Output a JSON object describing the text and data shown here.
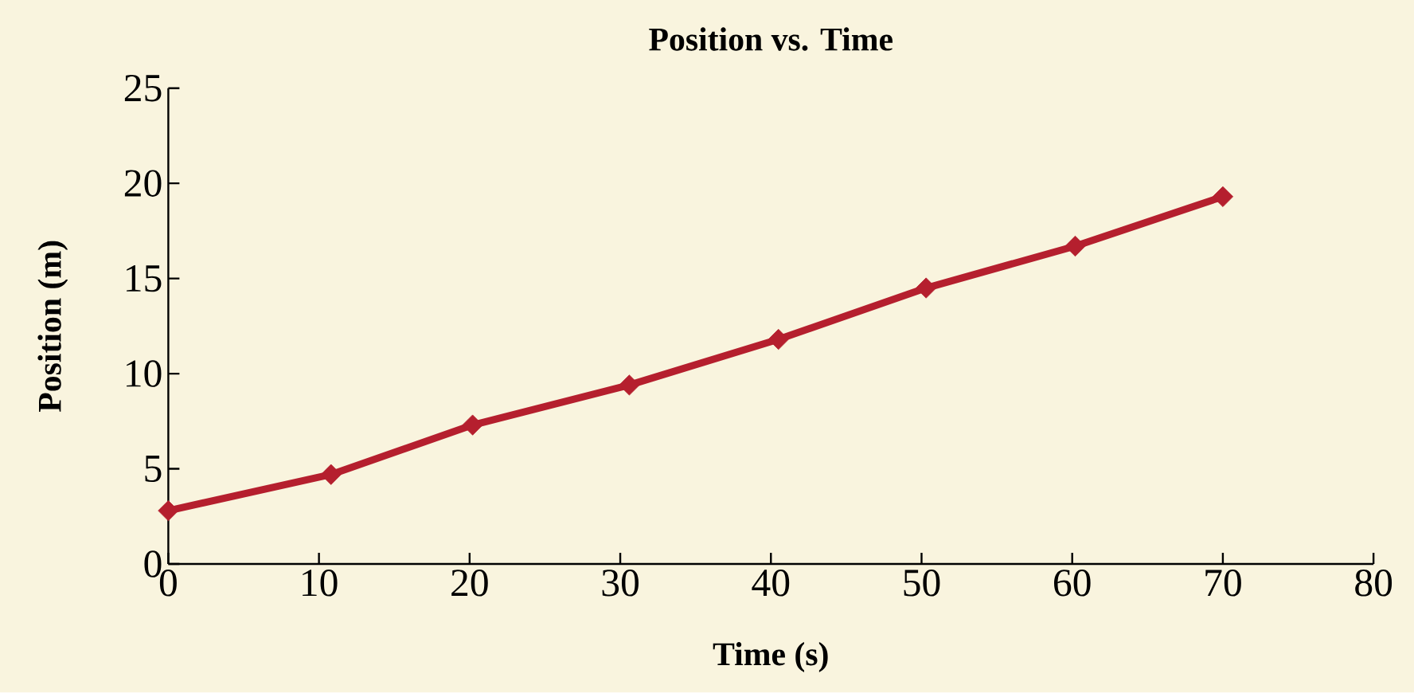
{
  "chart_data": {
    "type": "line",
    "title": "Position vs. Time",
    "xlabel": "Time (s)",
    "ylabel": "Position (m)",
    "x": [
      0,
      10.8,
      20.2,
      30.6,
      40.5,
      50.3,
      60.2,
      70
    ],
    "series": [
      {
        "color": "#b51f2e",
        "values": [
          2.8,
          4.7,
          7.3,
          9.4,
          11.8,
          14.5,
          16.7,
          19.3
        ]
      }
    ],
    "xlim": [
      0,
      80
    ],
    "xticks": [
      0,
      10,
      20,
      30,
      40,
      50,
      60,
      70,
      80
    ],
    "ylim": [
      0,
      25
    ],
    "yticks": [
      0,
      5,
      10,
      15,
      20,
      25
    ],
    "grid": false,
    "legend": false,
    "marker": "diamond",
    "line_style": "solid"
  }
}
